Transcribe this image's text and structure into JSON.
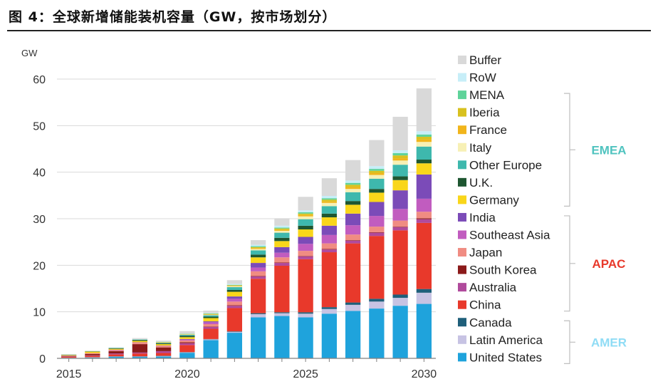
{
  "figure_title": "图 4：全球新增储能装机容量（GW，按市场划分）",
  "colors": {
    "axis": "#7f7f7f",
    "grid": "#d9d9d9",
    "bracket": "#bfbfbf",
    "emea": "#4fc3bf",
    "apac": "#e8392b",
    "amer": "#8fdcf5"
  },
  "chart_data": {
    "type": "bar",
    "stacked": true,
    "unit_label": "GW",
    "ylim": [
      0,
      60
    ],
    "y_ticks": [
      "0",
      "10",
      "20",
      "30",
      "40",
      "50",
      "60"
    ],
    "x": [
      2015,
      2016,
      2017,
      2018,
      2019,
      2020,
      2021,
      2022,
      2023,
      2024,
      2025,
      2026,
      2027,
      2028,
      2029,
      2030
    ],
    "x_tick_labels": [
      "2015",
      "2020",
      "2025",
      "2030"
    ],
    "grid": "horizontal",
    "legend_position": "right",
    "series": [
      {
        "name": "United States",
        "color": "#1fa3dc",
        "values": [
          0.1,
          0.2,
          0.3,
          0.3,
          0.4,
          1.2,
          3.9,
          5.5,
          8.8,
          9.1,
          8.8,
          9.6,
          10.2,
          10.7,
          11.3,
          11.7
        ]
      },
      {
        "name": "Latin America",
        "color": "#c7c3e3",
        "values": [
          0.05,
          0.05,
          0.1,
          0.1,
          0.1,
          0.1,
          0.2,
          0.2,
          0.7,
          0.6,
          0.8,
          1.0,
          1.3,
          1.5,
          1.7,
          2.4
        ]
      },
      {
        "name": "Canada",
        "color": "#1f5f7a",
        "values": [
          0.0,
          0.0,
          0.05,
          0.05,
          0.05,
          0.05,
          0.05,
          0.1,
          0.2,
          0.2,
          0.3,
          0.4,
          0.5,
          0.6,
          0.7,
          0.8
        ]
      },
      {
        "name": "China",
        "color": "#e8392b",
        "values": [
          0.2,
          0.3,
          0.4,
          0.6,
          0.6,
          1.5,
          2.2,
          5.0,
          7.4,
          10.0,
          11.4,
          11.8,
          12.7,
          13.5,
          13.8,
          14.2
        ]
      },
      {
        "name": "Australia",
        "color": "#b04a9c",
        "values": [
          0.05,
          0.1,
          0.2,
          0.2,
          0.4,
          0.4,
          0.4,
          0.5,
          0.5,
          0.6,
          0.6,
          0.6,
          0.6,
          0.7,
          0.7,
          0.8
        ]
      },
      {
        "name": "South Korea",
        "color": "#8b1a1a",
        "values": [
          0.1,
          0.3,
          0.5,
          1.8,
          0.8,
          0.2,
          0.1,
          0.1,
          0.1,
          0.1,
          0.1,
          0.1,
          0.1,
          0.1,
          0.1,
          0.2
        ]
      },
      {
        "name": "Japan",
        "color": "#f08c82",
        "values": [
          0.1,
          0.2,
          0.2,
          0.3,
          0.3,
          0.4,
          0.5,
          0.8,
          1.0,
          1.1,
          1.1,
          1.2,
          1.2,
          1.2,
          1.3,
          1.4
        ]
      },
      {
        "name": "Southeast Asia",
        "color": "#c15cbf",
        "values": [
          0.0,
          0.0,
          0.1,
          0.1,
          0.1,
          0.2,
          0.4,
          0.6,
          0.8,
          1.0,
          1.5,
          1.8,
          2.0,
          2.3,
          2.5,
          2.8
        ]
      },
      {
        "name": "India",
        "color": "#7b4bb8",
        "values": [
          0.0,
          0.0,
          0.0,
          0.0,
          0.0,
          0.1,
          0.2,
          0.5,
          1.0,
          1.2,
          1.5,
          2.0,
          2.5,
          3.0,
          4.0,
          5.2
        ]
      },
      {
        "name": "Germany",
        "color": "#f9d61a",
        "values": [
          0.1,
          0.3,
          0.2,
          0.3,
          0.3,
          0.4,
          0.7,
          1.0,
          1.2,
          1.3,
          1.6,
          1.8,
          1.9,
          2.0,
          2.2,
          2.4
        ]
      },
      {
        "name": "U.K.",
        "color": "#1e5631",
        "values": [
          0.05,
          0.05,
          0.1,
          0.2,
          0.2,
          0.3,
          0.3,
          0.4,
          0.6,
          0.7,
          0.8,
          0.8,
          0.8,
          0.8,
          0.8,
          0.8
        ]
      },
      {
        "name": "Other Europe",
        "color": "#3eb8ad",
        "values": [
          0.05,
          0.05,
          0.1,
          0.1,
          0.1,
          0.2,
          0.3,
          0.6,
          0.9,
          1.1,
          1.4,
          1.6,
          1.9,
          2.2,
          2.5,
          2.8
        ]
      },
      {
        "name": "Italy",
        "color": "#f7f0b5",
        "values": [
          0.0,
          0.0,
          0.0,
          0.05,
          0.05,
          0.1,
          0.1,
          0.2,
          0.3,
          0.4,
          0.6,
          0.7,
          0.7,
          0.8,
          0.9,
          1.0
        ]
      },
      {
        "name": "France",
        "color": "#f1b51b",
        "values": [
          0.0,
          0.0,
          0.0,
          0.0,
          0.05,
          0.05,
          0.1,
          0.1,
          0.2,
          0.2,
          0.3,
          0.3,
          0.4,
          0.4,
          0.5,
          0.5
        ]
      },
      {
        "name": "Iberia",
        "color": "#d8c11f",
        "values": [
          0.0,
          0.0,
          0.0,
          0.0,
          0.05,
          0.05,
          0.1,
          0.1,
          0.2,
          0.3,
          0.3,
          0.4,
          0.5,
          0.5,
          0.6,
          0.6
        ]
      },
      {
        "name": "MENA",
        "color": "#5fd39a",
        "values": [
          0.0,
          0.0,
          0.0,
          0.0,
          0.05,
          0.05,
          0.1,
          0.1,
          0.2,
          0.2,
          0.3,
          0.3,
          0.4,
          0.4,
          0.5,
          0.5
        ]
      },
      {
        "name": "RoW",
        "color": "#c7eef8",
        "values": [
          0.0,
          0.0,
          0.0,
          0.05,
          0.05,
          0.05,
          0.1,
          0.2,
          0.3,
          0.4,
          0.4,
          0.5,
          0.5,
          0.6,
          0.6,
          0.7
        ]
      },
      {
        "name": "Buffer",
        "color": "#d9d9d9",
        "values": [
          0.1,
          0.1,
          0.1,
          0.2,
          0.2,
          0.5,
          0.5,
          0.8,
          1.0,
          1.6,
          2.9,
          3.8,
          4.4,
          5.6,
          7.2,
          9.2
        ]
      }
    ],
    "legend_order": [
      "Buffer",
      "RoW",
      "MENA",
      "Iberia",
      "France",
      "Italy",
      "Other Europe",
      "U.K.",
      "Germany",
      "India",
      "Southeast Asia",
      "Japan",
      "South Korea",
      "Australia",
      "China",
      "Canada",
      "Latin America",
      "United States"
    ],
    "groups": [
      {
        "label": "EMEA",
        "members": [
          "Buffer",
          "RoW",
          "MENA",
          "Iberia",
          "France",
          "Italy",
          "Other Europe",
          "U.K.",
          "Germany"
        ],
        "bracket_from": "MENA",
        "bracket_to": "Germany",
        "color_key": "emea"
      },
      {
        "label": "APAC",
        "members": [
          "India",
          "Southeast Asia",
          "Japan",
          "South Korea",
          "Australia",
          "China"
        ],
        "bracket_from": "India",
        "bracket_to": "China",
        "color_key": "apac"
      },
      {
        "label": "AMER",
        "members": [
          "Canada",
          "Latin America",
          "United States"
        ],
        "bracket_from": "Canada",
        "bracket_to": "United States",
        "color_key": "amer"
      }
    ]
  }
}
